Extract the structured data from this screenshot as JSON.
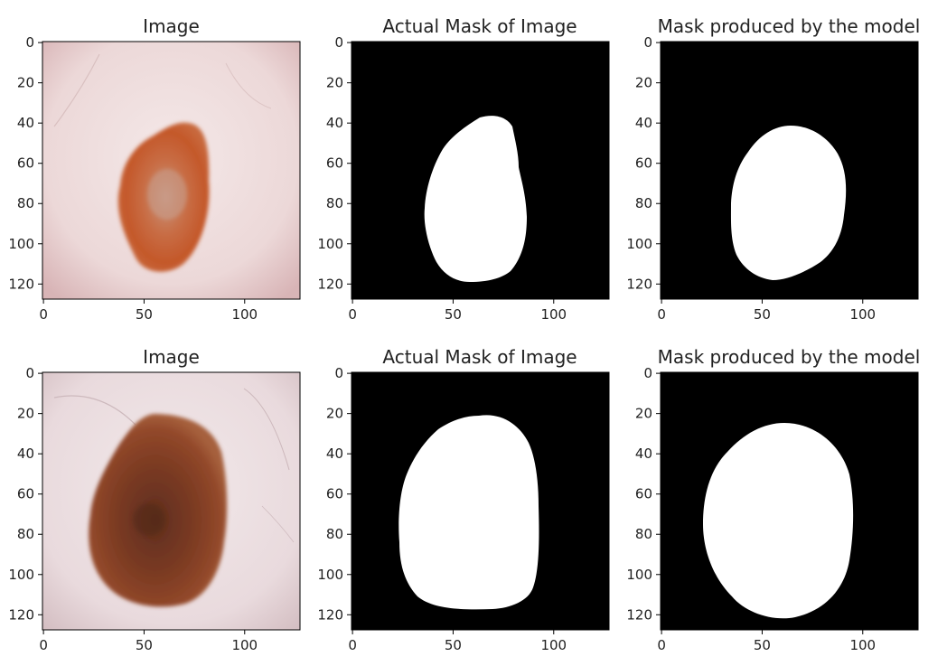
{
  "figure": {
    "rows": [
      {
        "panels": [
          {
            "title": "Image",
            "kind": "photo",
            "x_ticks": [
              "0",
              "50",
              "100"
            ],
            "y_ticks": [
              "0",
              "20",
              "40",
              "60",
              "80",
              "100",
              "120"
            ]
          },
          {
            "title": "Actual Mask of Image",
            "kind": "mask",
            "x_ticks": [
              "0",
              "50",
              "100"
            ],
            "y_ticks": [
              "0",
              "20",
              "40",
              "60",
              "80",
              "100",
              "120"
            ]
          },
          {
            "title": "Mask produced by the model",
            "kind": "mask",
            "x_ticks": [
              "0",
              "50",
              "100"
            ],
            "y_ticks": [
              "0",
              "20",
              "40",
              "60",
              "80",
              "100",
              "120"
            ]
          }
        ]
      },
      {
        "panels": [
          {
            "title": "Image",
            "kind": "photo",
            "x_ticks": [
              "0",
              "50",
              "100"
            ],
            "y_ticks": [
              "0",
              "20",
              "40",
              "60",
              "80",
              "100",
              "120"
            ]
          },
          {
            "title": "Actual Mask of Image",
            "kind": "mask",
            "x_ticks": [
              "0",
              "50",
              "100"
            ],
            "y_ticks": [
              "0",
              "20",
              "40",
              "60",
              "80",
              "100",
              "120"
            ]
          },
          {
            "title": "Mask produced by the model",
            "kind": "mask",
            "x_ticks": [
              "0",
              "50",
              "100"
            ],
            "y_ticks": [
              "0",
              "20",
              "40",
              "60",
              "80",
              "100",
              "120"
            ]
          }
        ]
      }
    ],
    "colors": {
      "mask_background": "#000000",
      "mask_foreground": "#ffffff",
      "skin": "#ecd8d8",
      "lesion_1": "#c65e31",
      "lesion_2": "#8a4326"
    }
  }
}
